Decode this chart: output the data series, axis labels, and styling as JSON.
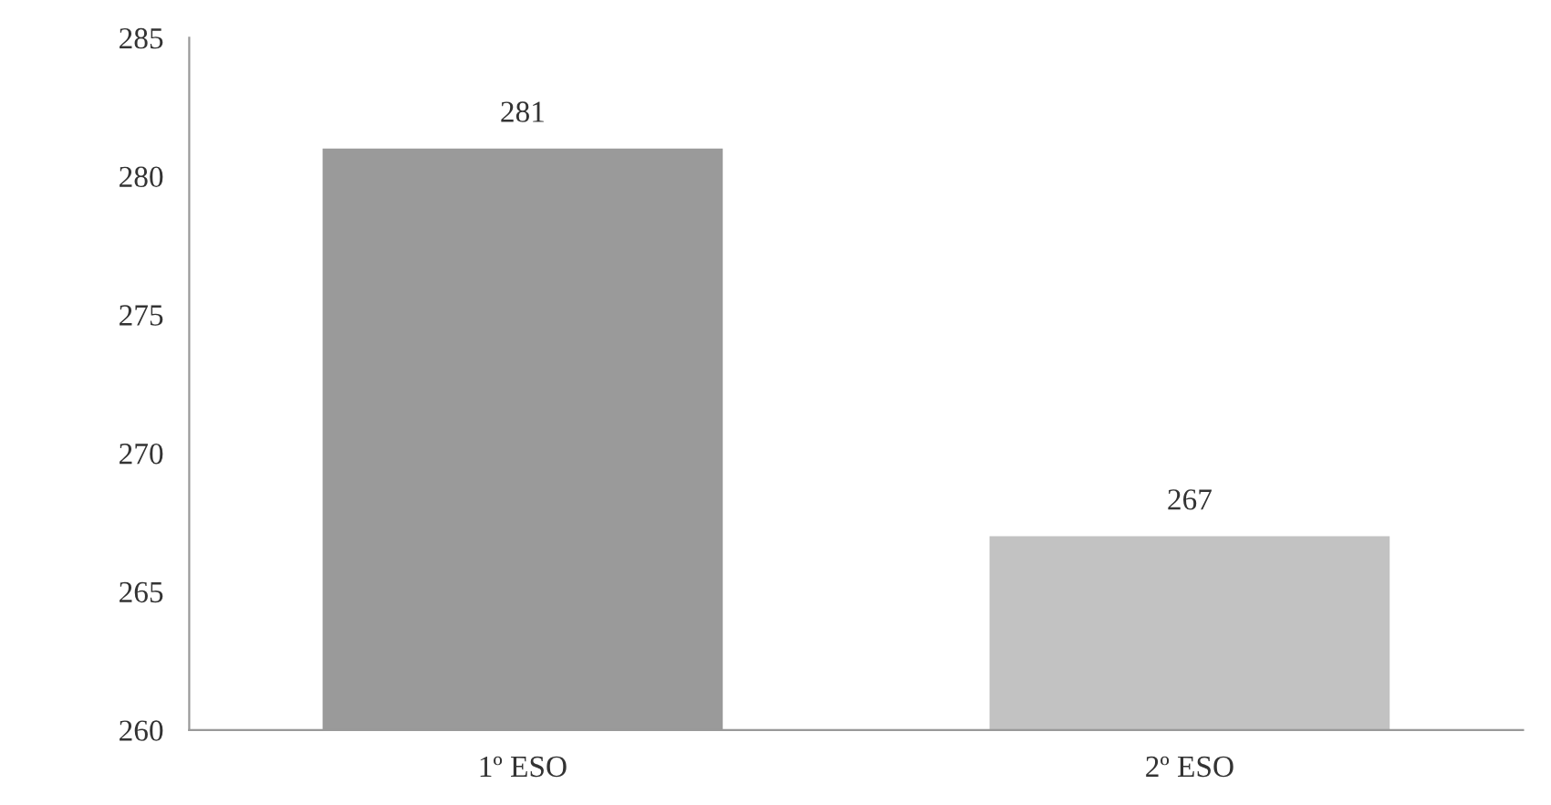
{
  "chart_data": {
    "type": "bar",
    "categories": [
      "1º ESO",
      "2º ESO"
    ],
    "values": [
      281,
      267
    ],
    "colors": [
      "#9a9a9a",
      "#c2c2c2"
    ],
    "ylim": [
      260,
      285
    ],
    "yticks": [
      260,
      265,
      270,
      275,
      280,
      285
    ],
    "data_labels": true,
    "grid": false,
    "legend": false
  }
}
